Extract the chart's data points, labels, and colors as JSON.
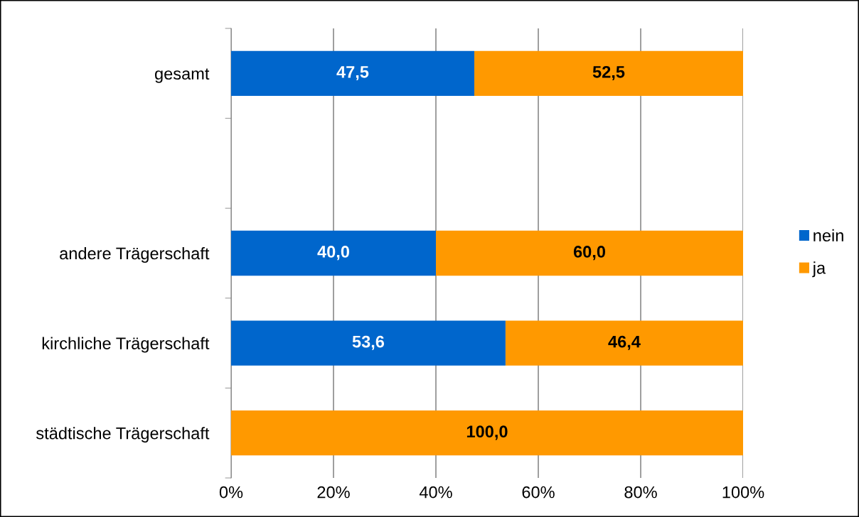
{
  "chart_data": {
    "type": "bar",
    "orientation": "horizontal",
    "stacked": true,
    "categories": [
      "gesamt",
      null,
      "andere Trägerschaft",
      "kirchliche Trägerschaft",
      "städtische Trägerschaft"
    ],
    "series": [
      {
        "name": "nein",
        "color": "#0066cc",
        "values": [
          47.5,
          null,
          40.0,
          53.6,
          0
        ],
        "value_labels": [
          "47,5",
          null,
          "40,0",
          "53,6",
          null
        ]
      },
      {
        "name": "ja",
        "color": "#ff9900",
        "values": [
          52.5,
          null,
          60.0,
          46.4,
          100.0
        ],
        "value_labels": [
          "52,5",
          null,
          "60,0",
          "46,4",
          "100,0"
        ]
      }
    ],
    "xlim": [
      0,
      100
    ],
    "xticks": [
      {
        "value": 0,
        "label": "0%"
      },
      {
        "value": 20,
        "label": "20%"
      },
      {
        "value": 40,
        "label": "40%"
      },
      {
        "value": 60,
        "label": "60%"
      },
      {
        "value": 80,
        "label": "80%"
      },
      {
        "value": 100,
        "label": "100%"
      }
    ],
    "grid": "x",
    "legend": "right"
  }
}
